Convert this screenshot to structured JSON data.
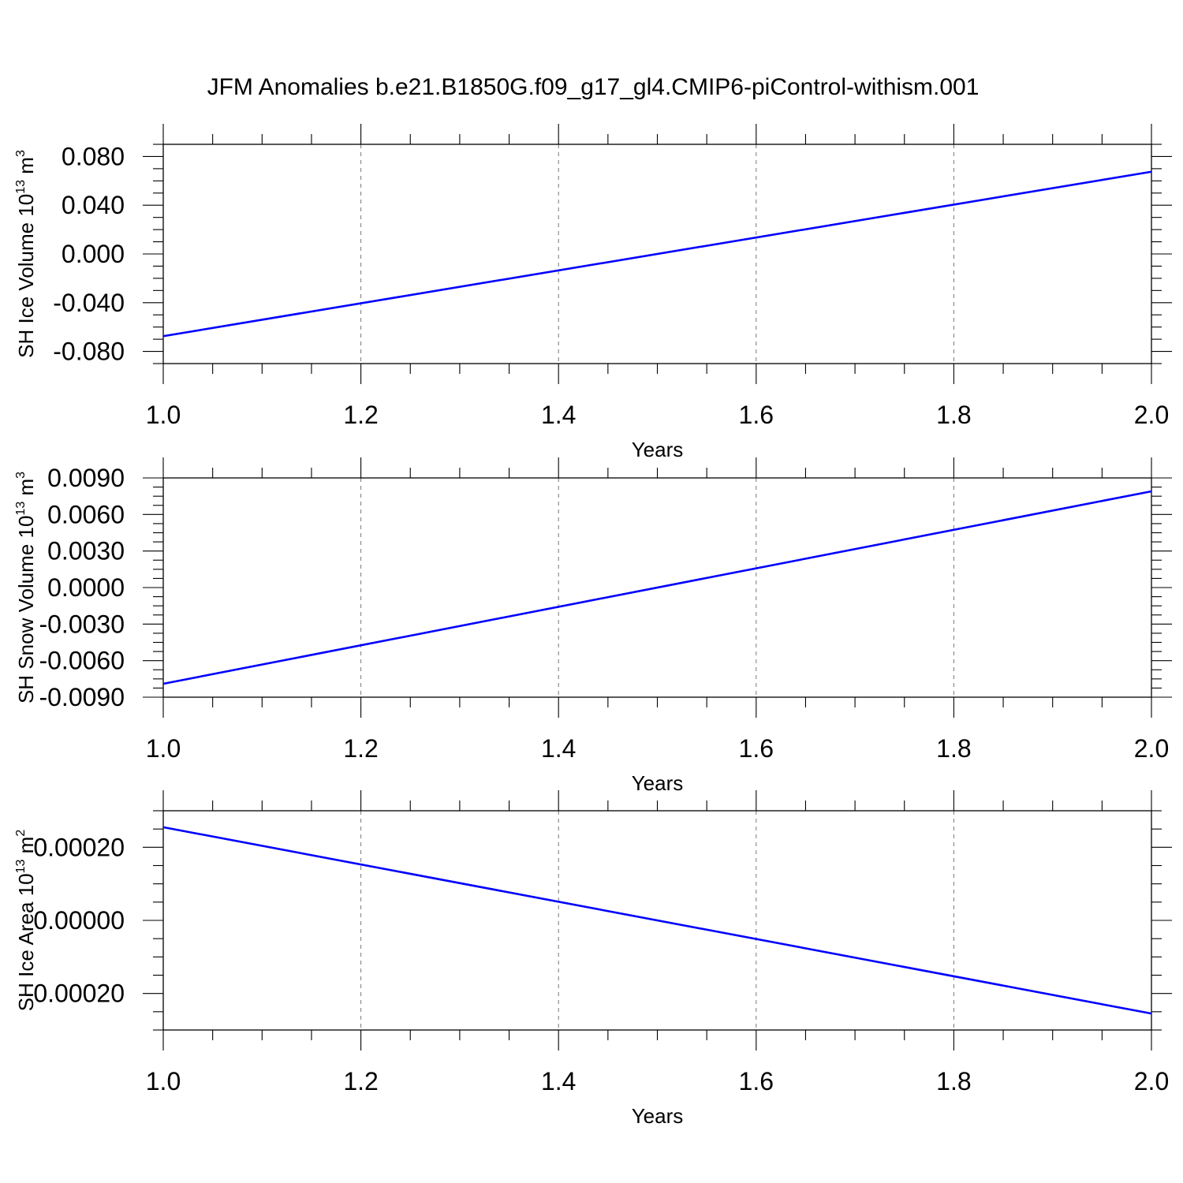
{
  "title": "JFM Anomalies b.e21.B1850G.f09_g17_gl4.CMIP6-piControl-withism.001",
  "colors": {
    "line": "#0000ff",
    "frame": "#000000",
    "grid": "#777777"
  },
  "chart_data": [
    {
      "type": "line",
      "ylabel_main": "SH Ice Volume 10",
      "ylabel_exp": "13",
      "ylabel_unit": " m",
      "ylabel_unit_exp": "3",
      "xlabel": "Years",
      "xlim": [
        1.0,
        2.0
      ],
      "ylim": [
        -0.09,
        0.09
      ],
      "xticks": [
        1.0,
        1.2,
        1.4,
        1.6,
        1.8,
        2.0
      ],
      "xtick_labels": [
        "1.0",
        "1.2",
        "1.4",
        "1.6",
        "1.8",
        "2.0"
      ],
      "yticks": [
        -0.08,
        -0.04,
        0.0,
        0.04,
        0.08
      ],
      "ytick_labels": [
        "-0.080",
        "-0.040",
        "0.000",
        "0.040",
        "0.080"
      ],
      "grid": "x",
      "series": [
        {
          "x": [
            1.0,
            2.0
          ],
          "y": [
            -0.0675,
            0.0675
          ]
        }
      ]
    },
    {
      "type": "line",
      "ylabel_main": "SH Snow Volume 10",
      "ylabel_exp": "13",
      "ylabel_unit": " m",
      "ylabel_unit_exp": "3",
      "xlabel": "Years",
      "xlim": [
        1.0,
        2.0
      ],
      "ylim": [
        -0.009,
        0.009
      ],
      "xticks": [
        1.0,
        1.2,
        1.4,
        1.6,
        1.8,
        2.0
      ],
      "xtick_labels": [
        "1.0",
        "1.2",
        "1.4",
        "1.6",
        "1.8",
        "2.0"
      ],
      "yticks": [
        -0.009,
        -0.006,
        -0.003,
        0.0,
        0.003,
        0.006,
        0.009
      ],
      "ytick_labels": [
        "-0.0090",
        "-0.0060",
        "-0.0030",
        "0.0000",
        "0.0030",
        "0.0060",
        "0.0090"
      ],
      "grid": "x",
      "series": [
        {
          "x": [
            1.0,
            2.0
          ],
          "y": [
            -0.0079,
            0.0079
          ]
        }
      ]
    },
    {
      "type": "line",
      "ylabel_main": "SH Ice Area 10",
      "ylabel_exp": "13",
      "ylabel_unit": " m",
      "ylabel_unit_exp": "2",
      "xlabel": "Years",
      "xlim": [
        1.0,
        2.0
      ],
      "ylim": [
        -0.0003,
        0.0003
      ],
      "xticks": [
        1.0,
        1.2,
        1.4,
        1.6,
        1.8,
        2.0
      ],
      "xtick_labels": [
        "1.0",
        "1.2",
        "1.4",
        "1.6",
        "1.8",
        "2.0"
      ],
      "yticks": [
        -0.0002,
        0.0,
        0.0002
      ],
      "ytick_labels": [
        "-0.00020",
        "0.00000",
        "0.00020"
      ],
      "grid": "x",
      "series": [
        {
          "x": [
            1.0,
            2.0
          ],
          "y": [
            0.000255,
            -0.000255
          ]
        }
      ]
    }
  ]
}
